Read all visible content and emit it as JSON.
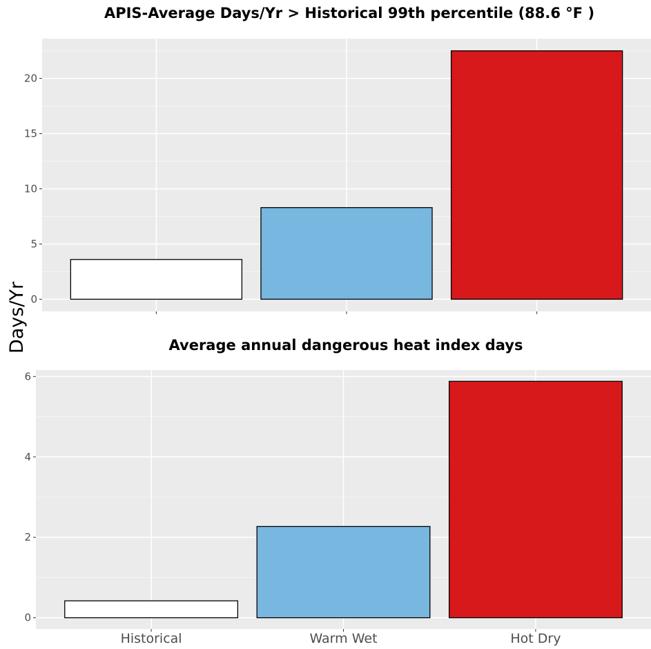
{
  "figure": {
    "ylabel": "Days/Yr"
  },
  "chart_data": [
    {
      "type": "bar",
      "title": "APIS-Average Days/Yr > Historical 99th percentile (88.6 °F )",
      "categories": [
        "Historical",
        "Warm Wet",
        "Hot Dry"
      ],
      "values": [
        3.6,
        8.3,
        22.5
      ],
      "colors": [
        "#ffffff",
        "#77b7e0",
        "#d7191c"
      ],
      "ylim": [
        -1.1,
        23.6
      ],
      "yticks": [
        0,
        5,
        10,
        15,
        20
      ],
      "show_category_labels": false,
      "grid": true
    },
    {
      "type": "bar",
      "title": "Average annual dangerous heat index days",
      "categories": [
        "Historical",
        "Warm Wet",
        "Hot Dry"
      ],
      "values": [
        0.42,
        2.27,
        5.88
      ],
      "colors": [
        "#ffffff",
        "#77b7e0",
        "#d7191c"
      ],
      "ylim": [
        -0.28,
        6.16
      ],
      "yticks": [
        0,
        2,
        4,
        6
      ],
      "show_category_labels": true,
      "grid": true
    }
  ]
}
